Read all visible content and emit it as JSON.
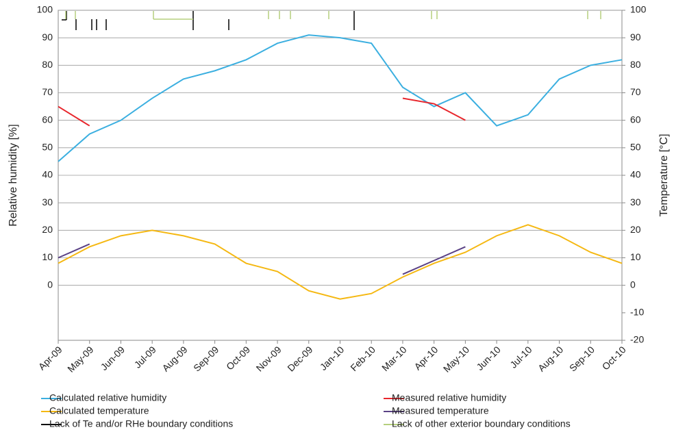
{
  "chart_data": {
    "type": "line",
    "y_label": "Relative humidity [%]",
    "y2_label": "Temperature [°C]",
    "x": [
      "Apr-09",
      "May-09",
      "Jun-09",
      "Jul-09",
      "Aug-09",
      "Sep-09",
      "Oct-09",
      "Nov-09",
      "Dec-09",
      "Jan-10",
      "Feb-10",
      "Mar-10",
      "Apr-10",
      "May-10",
      "Jun-10",
      "Jul-10",
      "Aug-10",
      "Sep-10",
      "Oct-10"
    ],
    "ylim": [
      -20,
      100
    ],
    "yticks": [
      0,
      10,
      20,
      30,
      40,
      50,
      60,
      70,
      80,
      90,
      100
    ],
    "y2lim": [
      -20,
      100
    ],
    "y2ticks": [
      -20,
      -10,
      0,
      10,
      20,
      30,
      40,
      50,
      60,
      70,
      80,
      90,
      100
    ],
    "grid": true,
    "legend": "bottom",
    "series": [
      {
        "name": "Calculated relative humidity",
        "color": "#3bafe0",
        "values": [
          45,
          55,
          60,
          68,
          75,
          78,
          82,
          88,
          91,
          90,
          88,
          72,
          65,
          70,
          58,
          62,
          75,
          80,
          82
        ]
      },
      {
        "name": "Measured relative humidity",
        "color": "#e8262c",
        "values": [
          65,
          58,
          null,
          null,
          null,
          null,
          null,
          null,
          null,
          null,
          null,
          68,
          66,
          60,
          null,
          null,
          null,
          null,
          null
        ]
      },
      {
        "name": "Calculated temperature",
        "color": "#f5b812",
        "axis": "y2",
        "values": [
          8,
          14,
          18,
          20,
          18,
          15,
          8,
          5,
          -2,
          -5,
          -3,
          3,
          8,
          12,
          18,
          22,
          18,
          12,
          8
        ]
      },
      {
        "name": "Measured temperature",
        "color": "#5a4185",
        "axis": "y2",
        "values": [
          10,
          15,
          null,
          null,
          null,
          null,
          null,
          null,
          null,
          null,
          null,
          4,
          9,
          14,
          null,
          null,
          null,
          null,
          null
        ]
      },
      {
        "name": "Lack of Te and/or RHe boundary conditions",
        "color": "#000000",
        "values": [
          null,
          null,
          null,
          null,
          null,
          null,
          null,
          null,
          null,
          null,
          null,
          null,
          null,
          null,
          null,
          null,
          null,
          null,
          null
        ]
      },
      {
        "name": "Lack of other exterior boundary conditions",
        "color": "#b5cf7d",
        "values": [
          null,
          null,
          null,
          null,
          null,
          null,
          null,
          null,
          null,
          null,
          null,
          null,
          null,
          null,
          null,
          null,
          null,
          null,
          null
        ]
      }
    ]
  }
}
